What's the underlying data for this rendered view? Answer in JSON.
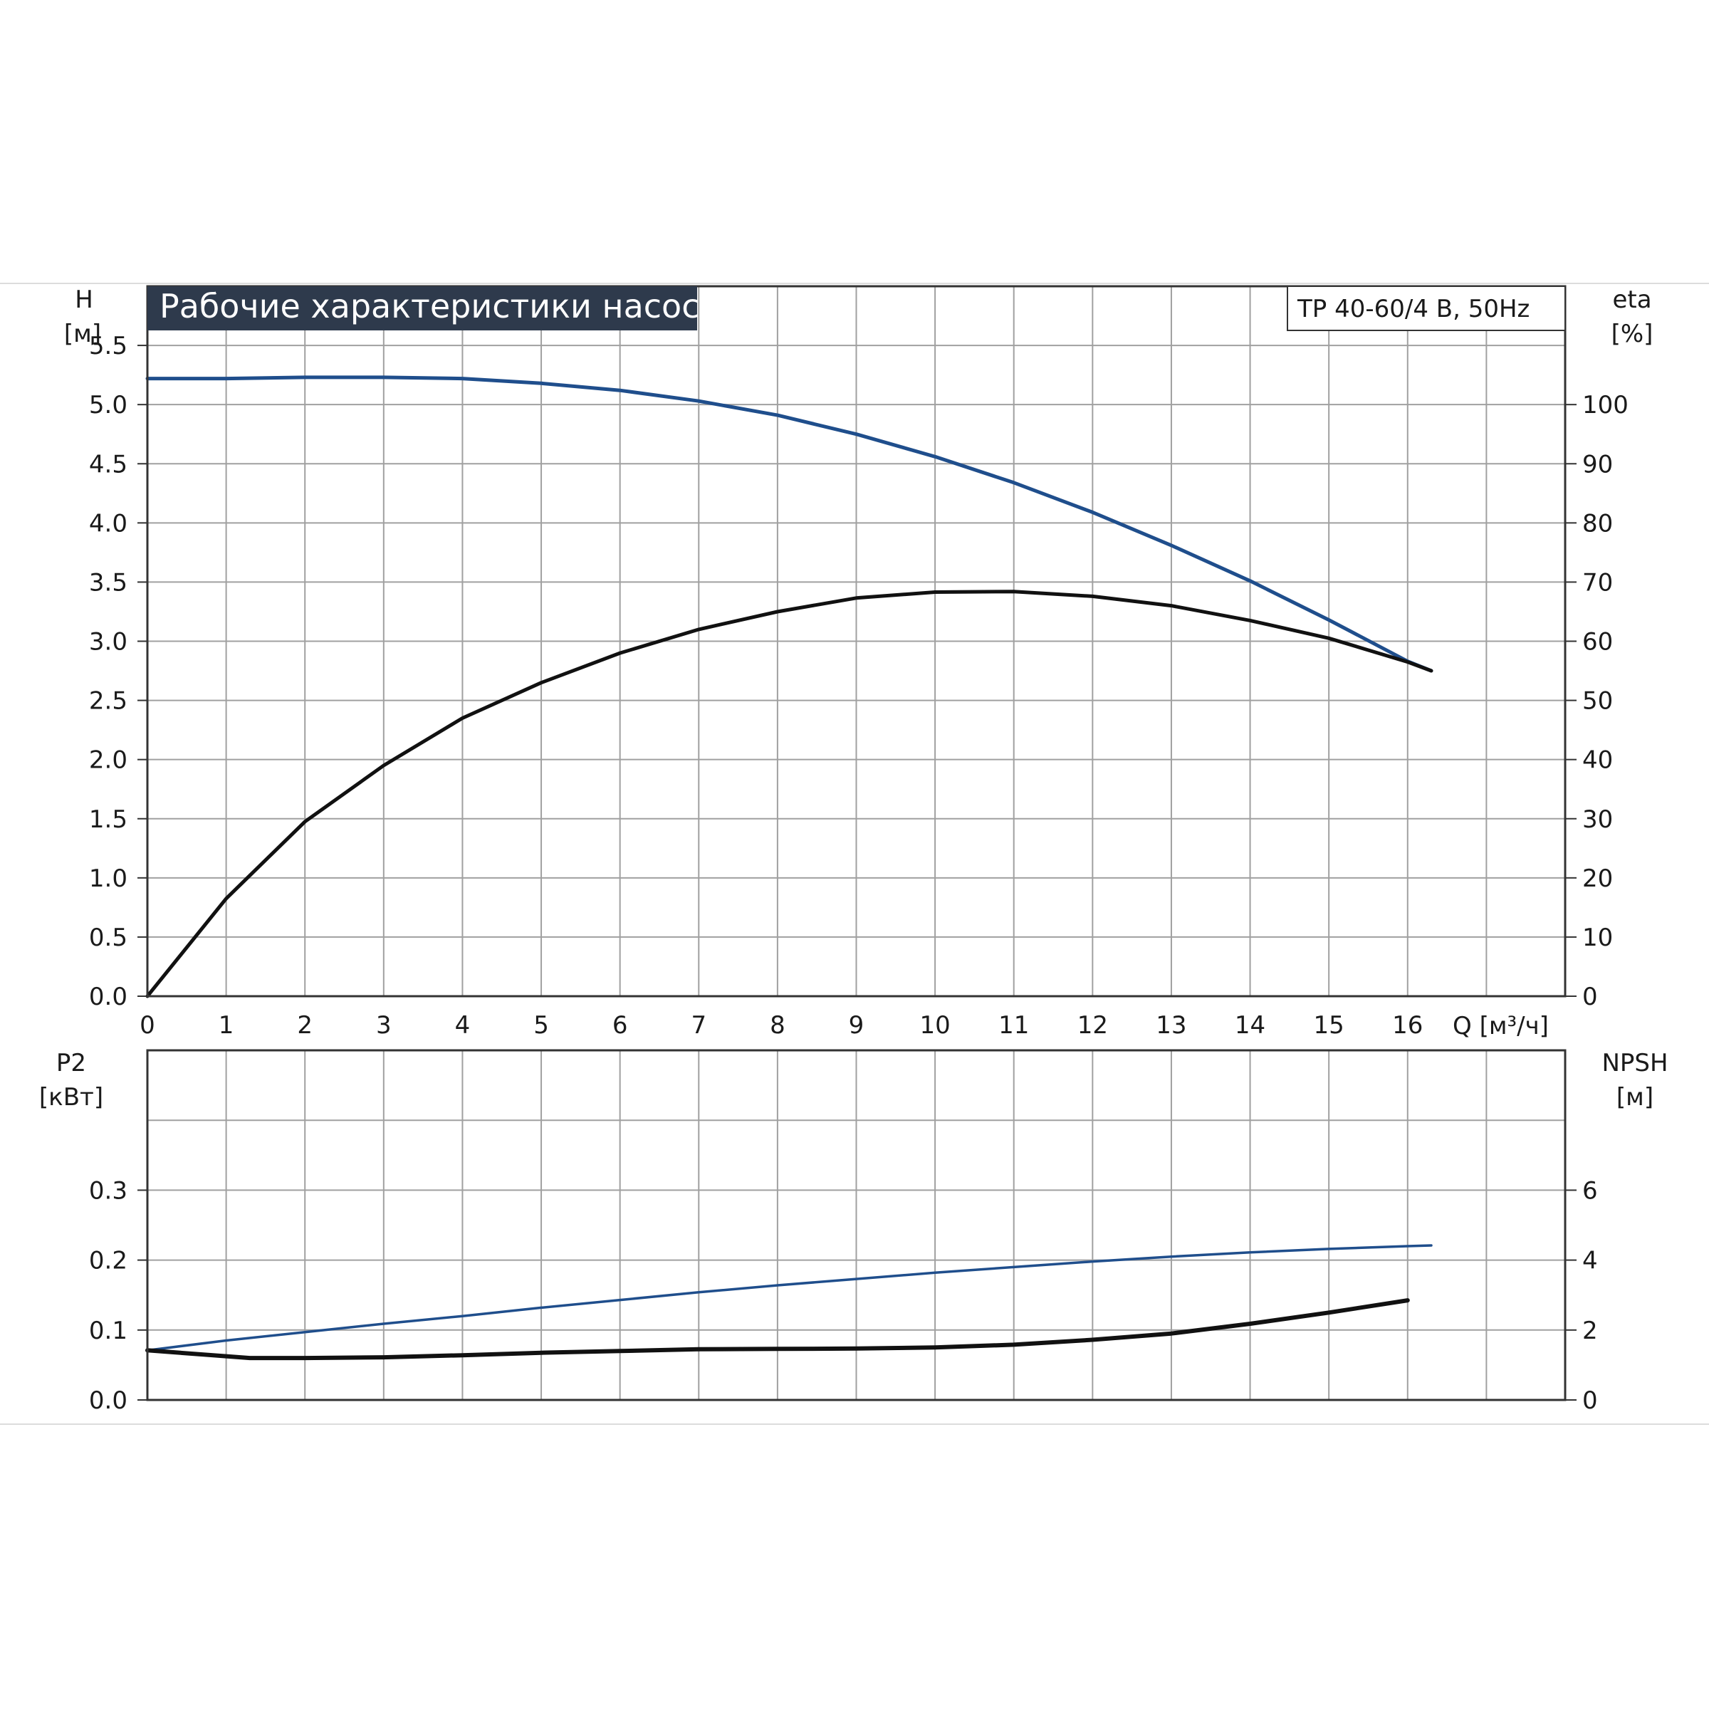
{
  "title": "Рабочие характеристики насоса",
  "model": "TP 40-60/4 B, 50Hz",
  "colors": {
    "title_bg": "#2e3a4c",
    "blue": "#1f4e8c",
    "black": "#111111",
    "grid": "#a0a0a0"
  },
  "chart_data": [
    {
      "type": "line",
      "name": "top",
      "x_ticks": [
        "0",
        "1",
        "2",
        "3",
        "4",
        "5",
        "6",
        "7",
        "8",
        "9",
        "10",
        "11",
        "12",
        "13",
        "14",
        "15",
        "16"
      ],
      "x_unit_label": "Q [м³/ч]",
      "y_left_label": "H",
      "y_left_unit": "[м]",
      "y_left_ticks": [
        "0.0",
        "0.5",
        "1.0",
        "1.5",
        "2.0",
        "2.5",
        "3.0",
        "3.5",
        "4.0",
        "4.5",
        "5.0",
        "5.5"
      ],
      "y_right_label": "eta",
      "y_right_unit": "[%]",
      "y_right_ticks": [
        "0",
        "10",
        "20",
        "30",
        "40",
        "50",
        "60",
        "70",
        "80",
        "90",
        "100"
      ],
      "xlim": [
        0,
        18
      ],
      "ylim_left": [
        0,
        6
      ],
      "ylim_right": [
        0,
        120
      ],
      "grid": true,
      "series": [
        {
          "axis": "left",
          "color": "#1f4e8c",
          "x": [
            0,
            1,
            2,
            3,
            4,
            5,
            6,
            7,
            8,
            9,
            10,
            11,
            12,
            13,
            14,
            15,
            16,
            16.3
          ],
          "y": [
            5.22,
            5.22,
            5.23,
            5.23,
            5.22,
            5.18,
            5.12,
            5.03,
            4.91,
            4.75,
            4.56,
            4.34,
            4.09,
            3.81,
            3.51,
            3.18,
            2.83,
            2.75
          ]
        },
        {
          "axis": "right",
          "color": "#111111",
          "x": [
            0,
            1,
            2,
            3,
            4,
            5,
            6,
            7,
            8,
            9,
            10,
            11,
            12,
            13,
            14,
            15,
            16,
            16.3
          ],
          "y": [
            0,
            16.5,
            29.5,
            39,
            47,
            53,
            58,
            62,
            65,
            67.3,
            68.3,
            68.4,
            67.6,
            66,
            63.5,
            60.5,
            56.5,
            55
          ]
        }
      ]
    },
    {
      "type": "line",
      "name": "bottom",
      "y_left_label": "P2",
      "y_left_unit": "[кВт]",
      "y_left_ticks": [
        "0.0",
        "0.1",
        "0.2",
        "0.3"
      ],
      "y_right_label": "NPSH",
      "y_right_unit": "[м]",
      "y_right_ticks": [
        "0",
        "2",
        "4",
        "6"
      ],
      "xlim": [
        0,
        18
      ],
      "ylim_left": [
        0,
        0.5
      ],
      "ylim_right": [
        0,
        10
      ],
      "grid": true,
      "series": [
        {
          "axis": "left",
          "color": "#1f4e8c",
          "x": [
            0,
            1,
            2,
            3,
            4,
            5,
            6,
            7,
            8,
            9,
            10,
            11,
            12,
            13,
            14,
            15,
            16,
            16.3
          ],
          "y": [
            0.071,
            0.085,
            0.097,
            0.109,
            0.12,
            0.132,
            0.143,
            0.154,
            0.164,
            0.173,
            0.182,
            0.19,
            0.198,
            0.205,
            0.211,
            0.216,
            0.22,
            0.221
          ]
        },
        {
          "axis": "right",
          "color": "#111111",
          "x": [
            0,
            1,
            1.3,
            2,
            3,
            4,
            5,
            6,
            7,
            8,
            9,
            10,
            11,
            12,
            13,
            14,
            15,
            16
          ],
          "y": [
            1.42,
            1.25,
            1.2,
            1.2,
            1.22,
            1.28,
            1.35,
            1.4,
            1.45,
            1.46,
            1.47,
            1.5,
            1.58,
            1.72,
            1.9,
            2.18,
            2.5,
            2.85
          ]
        }
      ]
    }
  ]
}
